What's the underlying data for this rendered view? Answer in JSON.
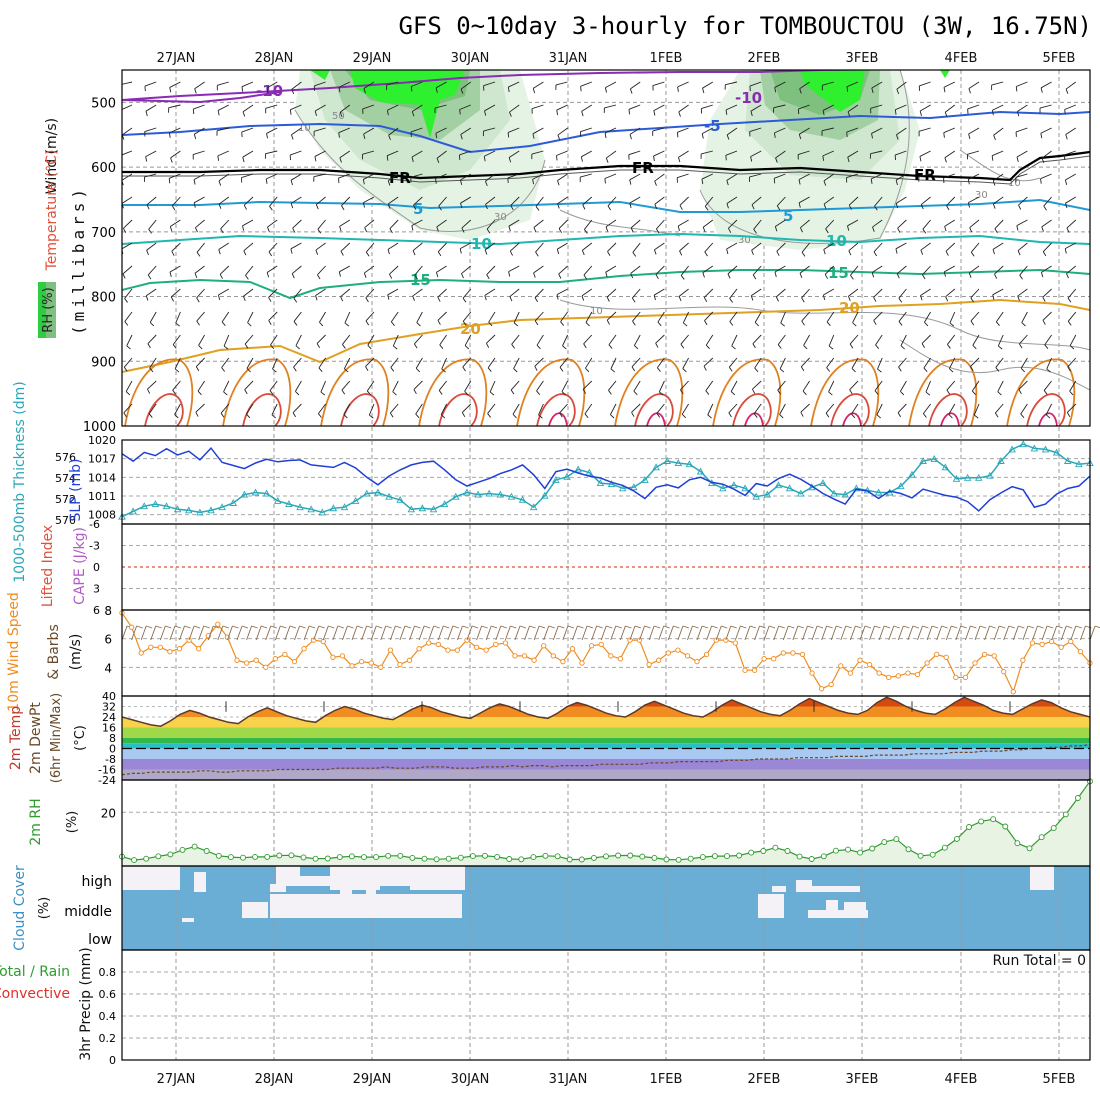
{
  "title": "GFS 0~10day 3-hourly for TOMBOUCTOU (3W, 16.75N)",
  "colors": {
    "wind_label": "#111111",
    "temp_label": "#e2503a",
    "rh_label": "#2f8a2f",
    "thickness_label": "#2aa8b8",
    "slp_label": "#1f3fd6",
    "li_label": "#e2503a",
    "cape_label": "#b35cc7",
    "wind10_label": "#f08c20",
    "barb_label": "#6a4a2a",
    "temp2m_label": "#c0392b",
    "dew2m_label": "#6a4a2a",
    "rh2m_label": "#2f9a2f",
    "cloud_label": "#3a8fc4",
    "precip_total_label": "#2e9e2e",
    "precip_conv_label": "#e0302a",
    "cloud_fill": "#6aaed6",
    "cloud_clear": "#f5f2f7"
  },
  "date_labels": [
    "27JAN",
    "28JAN",
    "29JAN",
    "30JAN",
    "31JAN",
    "1FEB",
    "2FEB",
    "3FEB",
    "4FEB",
    "5FEB"
  ],
  "labels": {
    "upper_rh": "RH (%)",
    "upper_temp": "Temperature (°C)",
    "upper_wind": "Wind (m/s)",
    "upper_press": "(millibars)",
    "thk": "1000-500mb Thickness (dm)",
    "slp": "SLP (mb)",
    "li": "Lifted Index",
    "cape": "CAPE (J/kg)",
    "w10": "10m Wind Speed",
    "barbs": "& Barbs",
    "w10unit": "(m/s)",
    "t2m": "2m Temp",
    "d2m": "2m DewPt",
    "tminmax": "(6hr Min/Max)",
    "tunit": "(°C)",
    "rh2m": "2m RH",
    "rhunit": "(%)",
    "cloud": "Cloud Cover",
    "cloudunit": "(%)",
    "precip_total": "Total / Rain",
    "precip_conv": "Convective",
    "precip_axis": "3hr Precip (mm)",
    "run_total": "Run Total = 0"
  },
  "chart_data": [
    {
      "type": "heatmap",
      "panel": "upper-air",
      "yaxis": "pressure (millibars)",
      "yticks": [
        500,
        600,
        700,
        800,
        900,
        1000
      ],
      "ylim": [
        450,
        1000
      ],
      "isotherm_labels": [
        "-10",
        "-5",
        "FR",
        "5",
        "10",
        "15",
        "20"
      ],
      "rh_contour_labels": [
        "10",
        "30",
        "50"
      ],
      "grid": true
    },
    {
      "type": "line",
      "panel": "thickness-slp",
      "y_left_ticks": [
        570,
        572,
        574,
        576
      ],
      "y_right_ticks": [
        1008,
        1011,
        1014,
        1017,
        1020
      ],
      "ylim_left": [
        569.6,
        577.6
      ],
      "ylim_right": [
        1006.5,
        1020
      ],
      "series": [
        {
          "name": "1000-500mb Thickness (dm)",
          "color": "#2aa8b8",
          "values": [
            570.3,
            570.8,
            571.3,
            571.5,
            571.3,
            571.0,
            570.9,
            570.7,
            570.9,
            571.2,
            571.6,
            572.4,
            572.6,
            572.5,
            571.8,
            571.5,
            571.2,
            571.0,
            570.7,
            571.1,
            571.2,
            571.8,
            572.5,
            572.6,
            572.2,
            571.9,
            571.0,
            571.1,
            571.0,
            571.5,
            572.2,
            572.6,
            572.4,
            572.5,
            572.4,
            572.2,
            571.9,
            571.2,
            572.3,
            573.8,
            574.1,
            574.8,
            574.5,
            573.5,
            573.4,
            573.0,
            573.1,
            573.8,
            575.0,
            575.6,
            575.4,
            575.3,
            574.6,
            573.5,
            573.0,
            573.3,
            573.0,
            572.2,
            572.4,
            573.3,
            573.0,
            572.5,
            573.1,
            573.5,
            572.5,
            572.4,
            573.0,
            572.8,
            572.6,
            572.6,
            573.2,
            574.3,
            575.6,
            575.8,
            575.0,
            573.9,
            574.0,
            574.0,
            574.2,
            575.6,
            576.7,
            577.2,
            576.8,
            576.7,
            576.4,
            575.6,
            575.3,
            575.4
          ]
        },
        {
          "name": "SLP (mb)",
          "color": "#1f3fd6",
          "values": [
            1017.8,
            1016.6,
            1018.0,
            1017.5,
            1018.6,
            1017.6,
            1018.2,
            1016.8,
            1018.7,
            1016.4,
            1015.9,
            1015.4,
            1016.3,
            1016.9,
            1016.5,
            1016.7,
            1016.8,
            1016.0,
            1015.8,
            1015.6,
            1016.4,
            1015.5,
            1014.0,
            1012.8,
            1014.2,
            1015.2,
            1016.0,
            1016.4,
            1016.6,
            1015.2,
            1013.6,
            1012.6,
            1013.2,
            1013.8,
            1014.6,
            1015.2,
            1016.0,
            1014.4,
            1012.2,
            1014.9,
            1015.3,
            1014.7,
            1014.2,
            1013.9,
            1013.2,
            1012.7,
            1011.8,
            1010.6,
            1012.4,
            1012.8,
            1012.3,
            1013.6,
            1014.0,
            1013.2,
            1012.9,
            1012.1,
            1011.1,
            1013.0,
            1012.6,
            1013.8,
            1014.5,
            1013.7,
            1012.6,
            1011.4,
            1010.5,
            1009.7,
            1012.1,
            1011.8,
            1010.6,
            1011.8,
            1011.4,
            1010.7,
            1012.1,
            1011.6,
            1011.1,
            1010.8,
            1010.1,
            1008.6,
            1010.4,
            1011.5,
            1012.5,
            1012.0,
            1009.2,
            1009.7,
            1011.3,
            1012.2,
            1012.6,
            1014.2
          ]
        }
      ]
    },
    {
      "type": "line",
      "panel": "lifted-index-cape",
      "yticks": [
        -6,
        -3,
        0,
        3,
        6
      ],
      "ylim": [
        -6,
        6
      ],
      "series": [
        {
          "name": "Lifted Index",
          "values": []
        }
      ]
    },
    {
      "type": "line",
      "panel": "10m-wind",
      "yticks": [
        4,
        6,
        8
      ],
      "ylim": [
        2,
        8
      ],
      "series": [
        {
          "name": "10m Wind Speed",
          "color": "#f08c20",
          "values": [
            7.8,
            6.8,
            5.0,
            5.4,
            5.4,
            5.1,
            5.3,
            5.9,
            5.3,
            6.2,
            7.0,
            6.1,
            4.5,
            4.3,
            4.5,
            4.0,
            4.6,
            4.9,
            4.4,
            5.3,
            5.9,
            5.8,
            4.7,
            4.8,
            4.1,
            4.4,
            4.3,
            4.0,
            5.2,
            4.2,
            4.5,
            5.3,
            5.7,
            5.6,
            5.2,
            5.2,
            5.9,
            5.4,
            5.2,
            5.6,
            5.7,
            4.8,
            4.8,
            4.5,
            5.5,
            4.8,
            4.4,
            5.3,
            4.3,
            5.5,
            5.6,
            4.8,
            4.6,
            5.9,
            5.9,
            4.2,
            4.5,
            5.0,
            5.2,
            4.8,
            4.4,
            4.9,
            5.9,
            5.9,
            5.7,
            3.8,
            3.8,
            4.6,
            4.6,
            5.0,
            5.0,
            4.9,
            3.6,
            2.5,
            2.8,
            4.1,
            3.6,
            4.5,
            4.2,
            3.6,
            3.3,
            3.4,
            3.6,
            3.5,
            4.3,
            4.9,
            4.7,
            3.3,
            3.3,
            4.3,
            4.9,
            4.8,
            3.7,
            2.3,
            4.5,
            5.7,
            5.6,
            5.8,
            5.4,
            5.8,
            5.1,
            4.3
          ]
        }
      ]
    },
    {
      "type": "area",
      "panel": "2m-temp",
      "yticks": [
        40,
        32,
        24,
        16,
        8,
        0,
        -8,
        -16,
        -24
      ],
      "ylim": [
        -24,
        40
      ],
      "series": [
        {
          "name": "2m Temp",
          "values": [
            24,
            22,
            20,
            18,
            17,
            21,
            26,
            29,
            27,
            24,
            22,
            20,
            19,
            24,
            28,
            31,
            28,
            25,
            23,
            21,
            20,
            25,
            29,
            32,
            30,
            27,
            25,
            23,
            22,
            26,
            30,
            33,
            31,
            28,
            26,
            24,
            23,
            27,
            31,
            34,
            32,
            29,
            26,
            24,
            23,
            27,
            32,
            35,
            33,
            30,
            27,
            25,
            24,
            28,
            33,
            36,
            33,
            30,
            27,
            25,
            24,
            28,
            33,
            37,
            34,
            31,
            28,
            26,
            25,
            29,
            34,
            38,
            35,
            32,
            29,
            27,
            26,
            29,
            35,
            39,
            36,
            32,
            29,
            27,
            26,
            30,
            35,
            39,
            36,
            33,
            29,
            27,
            26,
            30,
            34,
            37,
            35,
            31,
            28,
            26,
            24
          ]
        },
        {
          "name": "2m DewPt",
          "values": [
            -20,
            -19,
            -19,
            -18,
            -18,
            -18,
            -18,
            -18,
            -17,
            -17,
            -18,
            -18,
            -17,
            -17,
            -17,
            -17,
            -16,
            -16,
            -16,
            -16,
            -16,
            -16,
            -15,
            -15,
            -15,
            -15,
            -15,
            -14,
            -15,
            -15,
            -15,
            -14,
            -14,
            -14,
            -15,
            -15,
            -15,
            -14,
            -14,
            -14,
            -13,
            -14,
            -13,
            -13,
            -14,
            -13,
            -13,
            -13,
            -13,
            -12,
            -12,
            -12,
            -12,
            -12,
            -11,
            -11,
            -11,
            -10,
            -10,
            -10,
            -10,
            -10,
            -9,
            -9,
            -9,
            -8,
            -8,
            -8,
            -8,
            -7,
            -7,
            -7,
            -7,
            -6,
            -6,
            -6,
            -6,
            -5,
            -5,
            -5,
            -5,
            -4,
            -4,
            -4,
            -4,
            -3,
            -3,
            -3,
            -2,
            -2,
            -2,
            -1,
            -1,
            0,
            0,
            1,
            1,
            2,
            2,
            3
          ]
        }
      ]
    },
    {
      "type": "line",
      "panel": "2m-rh",
      "yticks": [
        20
      ],
      "ylim": [
        0,
        32
      ],
      "series": [
        {
          "name": "2m RH",
          "color": "#2f9a2f",
          "values": [
            3.5,
            2.2,
            2.7,
            3.6,
            4.3,
            6.0,
            7.2,
            5.6,
            3.8,
            3.3,
            3.1,
            3.4,
            3.4,
            3.9,
            4.0,
            3.2,
            2.7,
            2.8,
            3.3,
            3.6,
            3.3,
            3.3,
            3.8,
            3.8,
            3.0,
            2.7,
            2.5,
            2.7,
            3.1,
            3.7,
            3.8,
            3.4,
            2.6,
            2.5,
            3.3,
            3.8,
            3.6,
            2.4,
            2.4,
            3.0,
            3.6,
            3.9,
            3.9,
            3.5,
            3.0,
            2.4,
            2.3,
            2.7,
            3.3,
            3.7,
            3.7,
            3.9,
            5.0,
            5.6,
            6.8,
            5.6,
            3.5,
            2.6,
            3.6,
            5.7,
            6.1,
            5.0,
            6.5,
            8.9,
            10.0,
            6.2,
            3.8,
            4.2,
            6.8,
            10.1,
            14.5,
            16.6,
            17.4,
            14.7,
            8.5,
            6.6,
            10.7,
            14.1,
            19.2,
            25.3,
            31.5
          ]
        }
      ]
    },
    {
      "type": "heatmap",
      "panel": "cloud-cover",
      "rows": [
        "high",
        "middle",
        "low"
      ],
      "unit": "(%)"
    },
    {
      "type": "bar",
      "panel": "3hr-precip",
      "yticks": [
        0,
        0.2,
        0.4,
        0.6,
        0.8
      ],
      "ylim": [
        0,
        1
      ],
      "values": [],
      "run_total": 0
    }
  ]
}
